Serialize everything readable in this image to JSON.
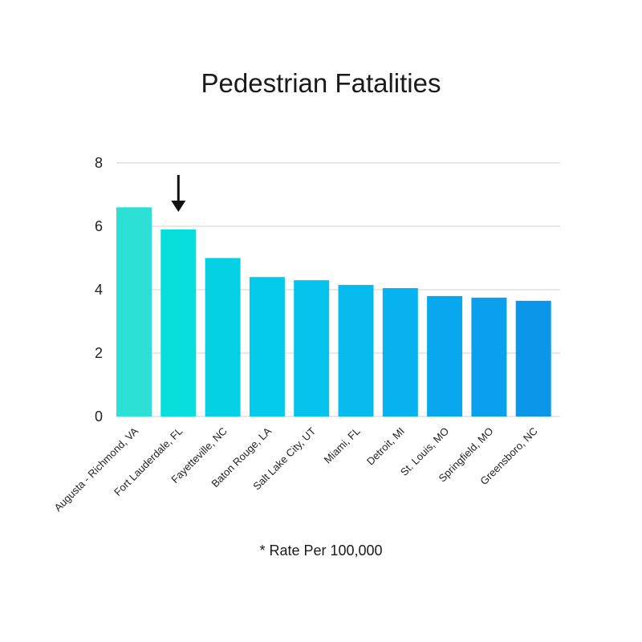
{
  "chart_data": {
    "type": "bar",
    "title": "Pedestrian Fatalities",
    "note": "* Rate Per 100,000",
    "categories": [
      "Augusta - Richmond, VA",
      "Fort Lauderdale, FL",
      "Fayetteville, NC",
      "Baton Rouge, LA",
      "Salt Lake City, UT",
      "Miami, FL",
      "Detroit, MI",
      "St. Louis, MO",
      "Springfield, MO",
      "Greensboro, NC"
    ],
    "values": [
      6.6,
      5.9,
      5.0,
      4.4,
      4.3,
      4.15,
      4.05,
      3.8,
      3.75,
      3.65
    ],
    "ylim": [
      0,
      8
    ],
    "yticks": [
      0,
      2,
      4,
      6,
      8
    ],
    "grid": true,
    "highlight_index": 1,
    "bar_colors": [
      "#2de0d6",
      "#06dfdc",
      "#04d2e4",
      "#05cbea",
      "#06c3ed",
      "#07bbee",
      "#08b2ee",
      "#09a8ee",
      "#0aa0ee",
      "#0b96ea"
    ]
  }
}
